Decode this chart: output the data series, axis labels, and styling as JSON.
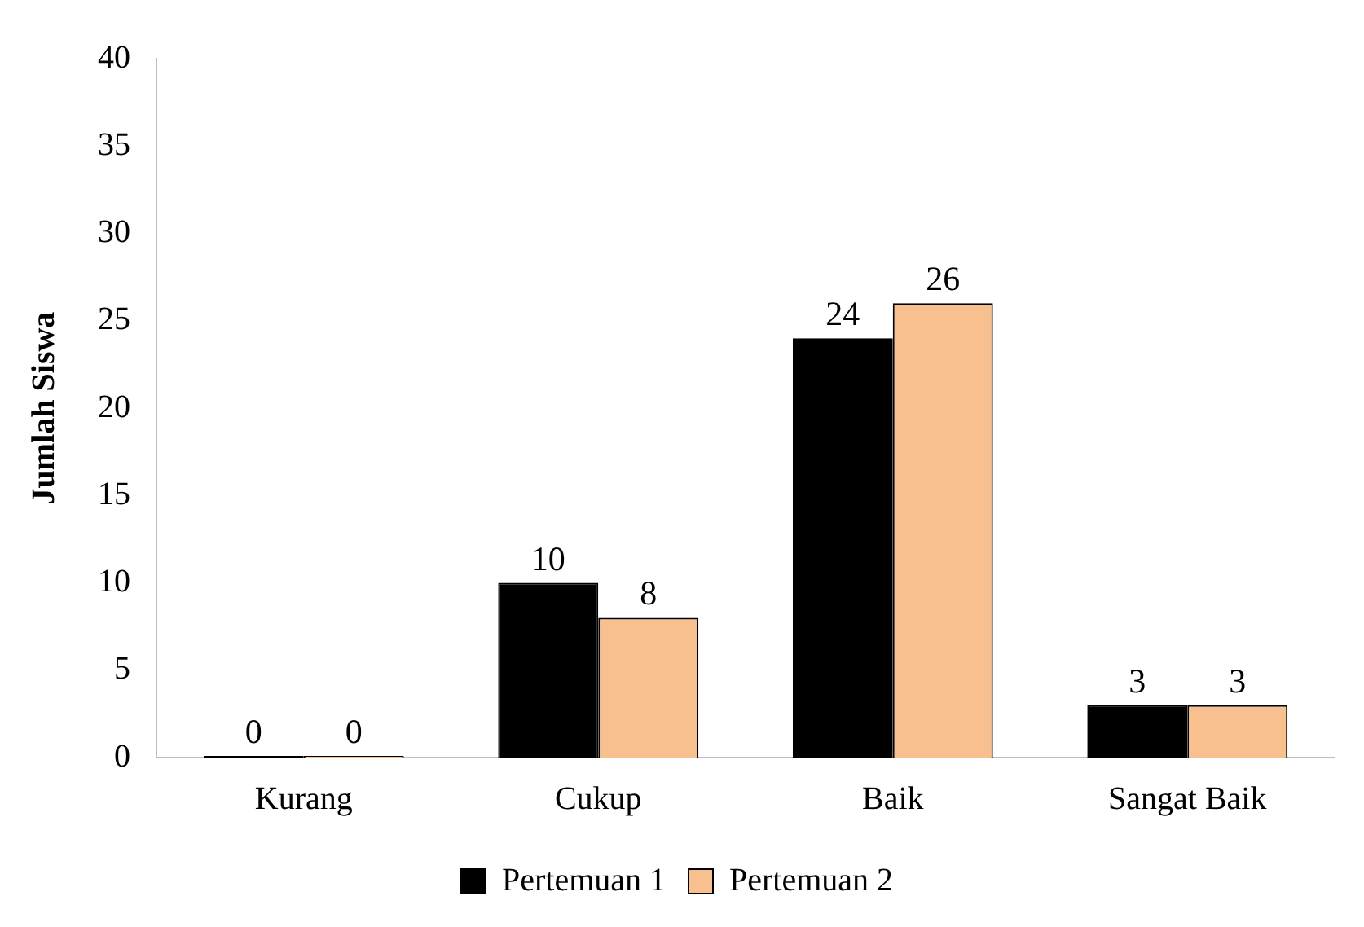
{
  "chart_data": {
    "type": "bar",
    "ylabel": "Jumlah Siswa",
    "categories": [
      "Kurang",
      "Cukup",
      "Baik",
      "Sangat Baik"
    ],
    "series": [
      {
        "name": "Pertemuan 1",
        "color": "#000000",
        "values": [
          0,
          10,
          24,
          3
        ]
      },
      {
        "name": "Pertemuan 2",
        "color": "#f8c08f",
        "values": [
          0,
          8,
          26,
          3
        ]
      }
    ],
    "ylim": [
      0,
      40
    ],
    "yticks": [
      0,
      5,
      10,
      15,
      20,
      25,
      30,
      35,
      40
    ],
    "grid": false,
    "legend": "bottom",
    "data_labels": true
  }
}
